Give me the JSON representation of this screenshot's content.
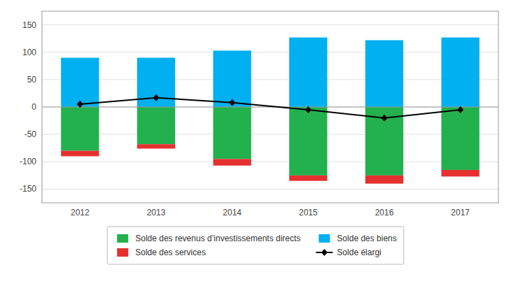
{
  "chart_data": {
    "type": "bar",
    "stacked": true,
    "categories": [
      "2012",
      "2013",
      "2014",
      "2015",
      "2016",
      "2017"
    ],
    "series": [
      {
        "name": "Solde des revenus d’investissements directs",
        "type": "bar",
        "color": "#22b14c",
        "values": [
          -80,
          -68,
          -95,
          -125,
          -125,
          -115
        ]
      },
      {
        "name": "Solde des services",
        "type": "bar",
        "color": "#e63030",
        "values": [
          -10,
          -8,
          -12,
          -10,
          -15,
          -12
        ]
      },
      {
        "name": "Solde des biens",
        "type": "bar",
        "color": "#00b0f0",
        "values": [
          90,
          90,
          103,
          127,
          122,
          127
        ]
      },
      {
        "name": "Solde élargi",
        "type": "line",
        "color": "#000000",
        "marker": "diamond",
        "line_style": "solid",
        "values": [
          5,
          17,
          8,
          -5,
          -20,
          -5
        ]
      }
    ],
    "ylim": [
      -175,
      175
    ],
    "yticks": [
      -150,
      -100,
      -50,
      0,
      50,
      100,
      150
    ],
    "grid": true,
    "legend": "bottom"
  }
}
